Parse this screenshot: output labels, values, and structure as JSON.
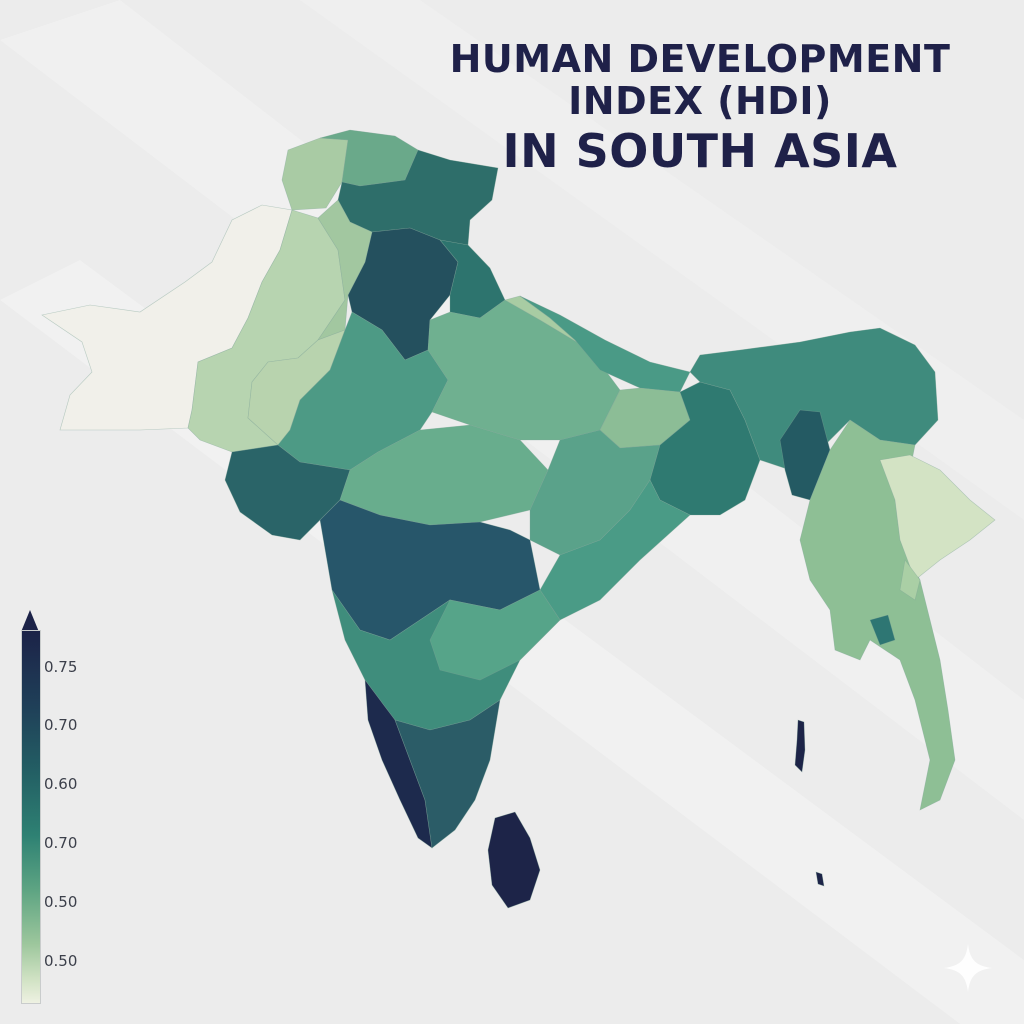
{
  "title": {
    "line1": "HUMAN DEVELOPMENT",
    "line2": "INDEX (HDI)",
    "line3": "IN SOUTH ASIA"
  },
  "legend": {
    "ticks": [
      "0.75",
      "0.70",
      "0.60",
      "0.70",
      "0.50",
      "0.50"
    ]
  },
  "colors": {
    "title": "#1f2149",
    "scale_high": "#1c2348",
    "scale_mid": "#2e8173",
    "scale_low": "#eef1e2",
    "background": "#ececec"
  },
  "icons": [
    "sparkle-icon"
  ]
}
